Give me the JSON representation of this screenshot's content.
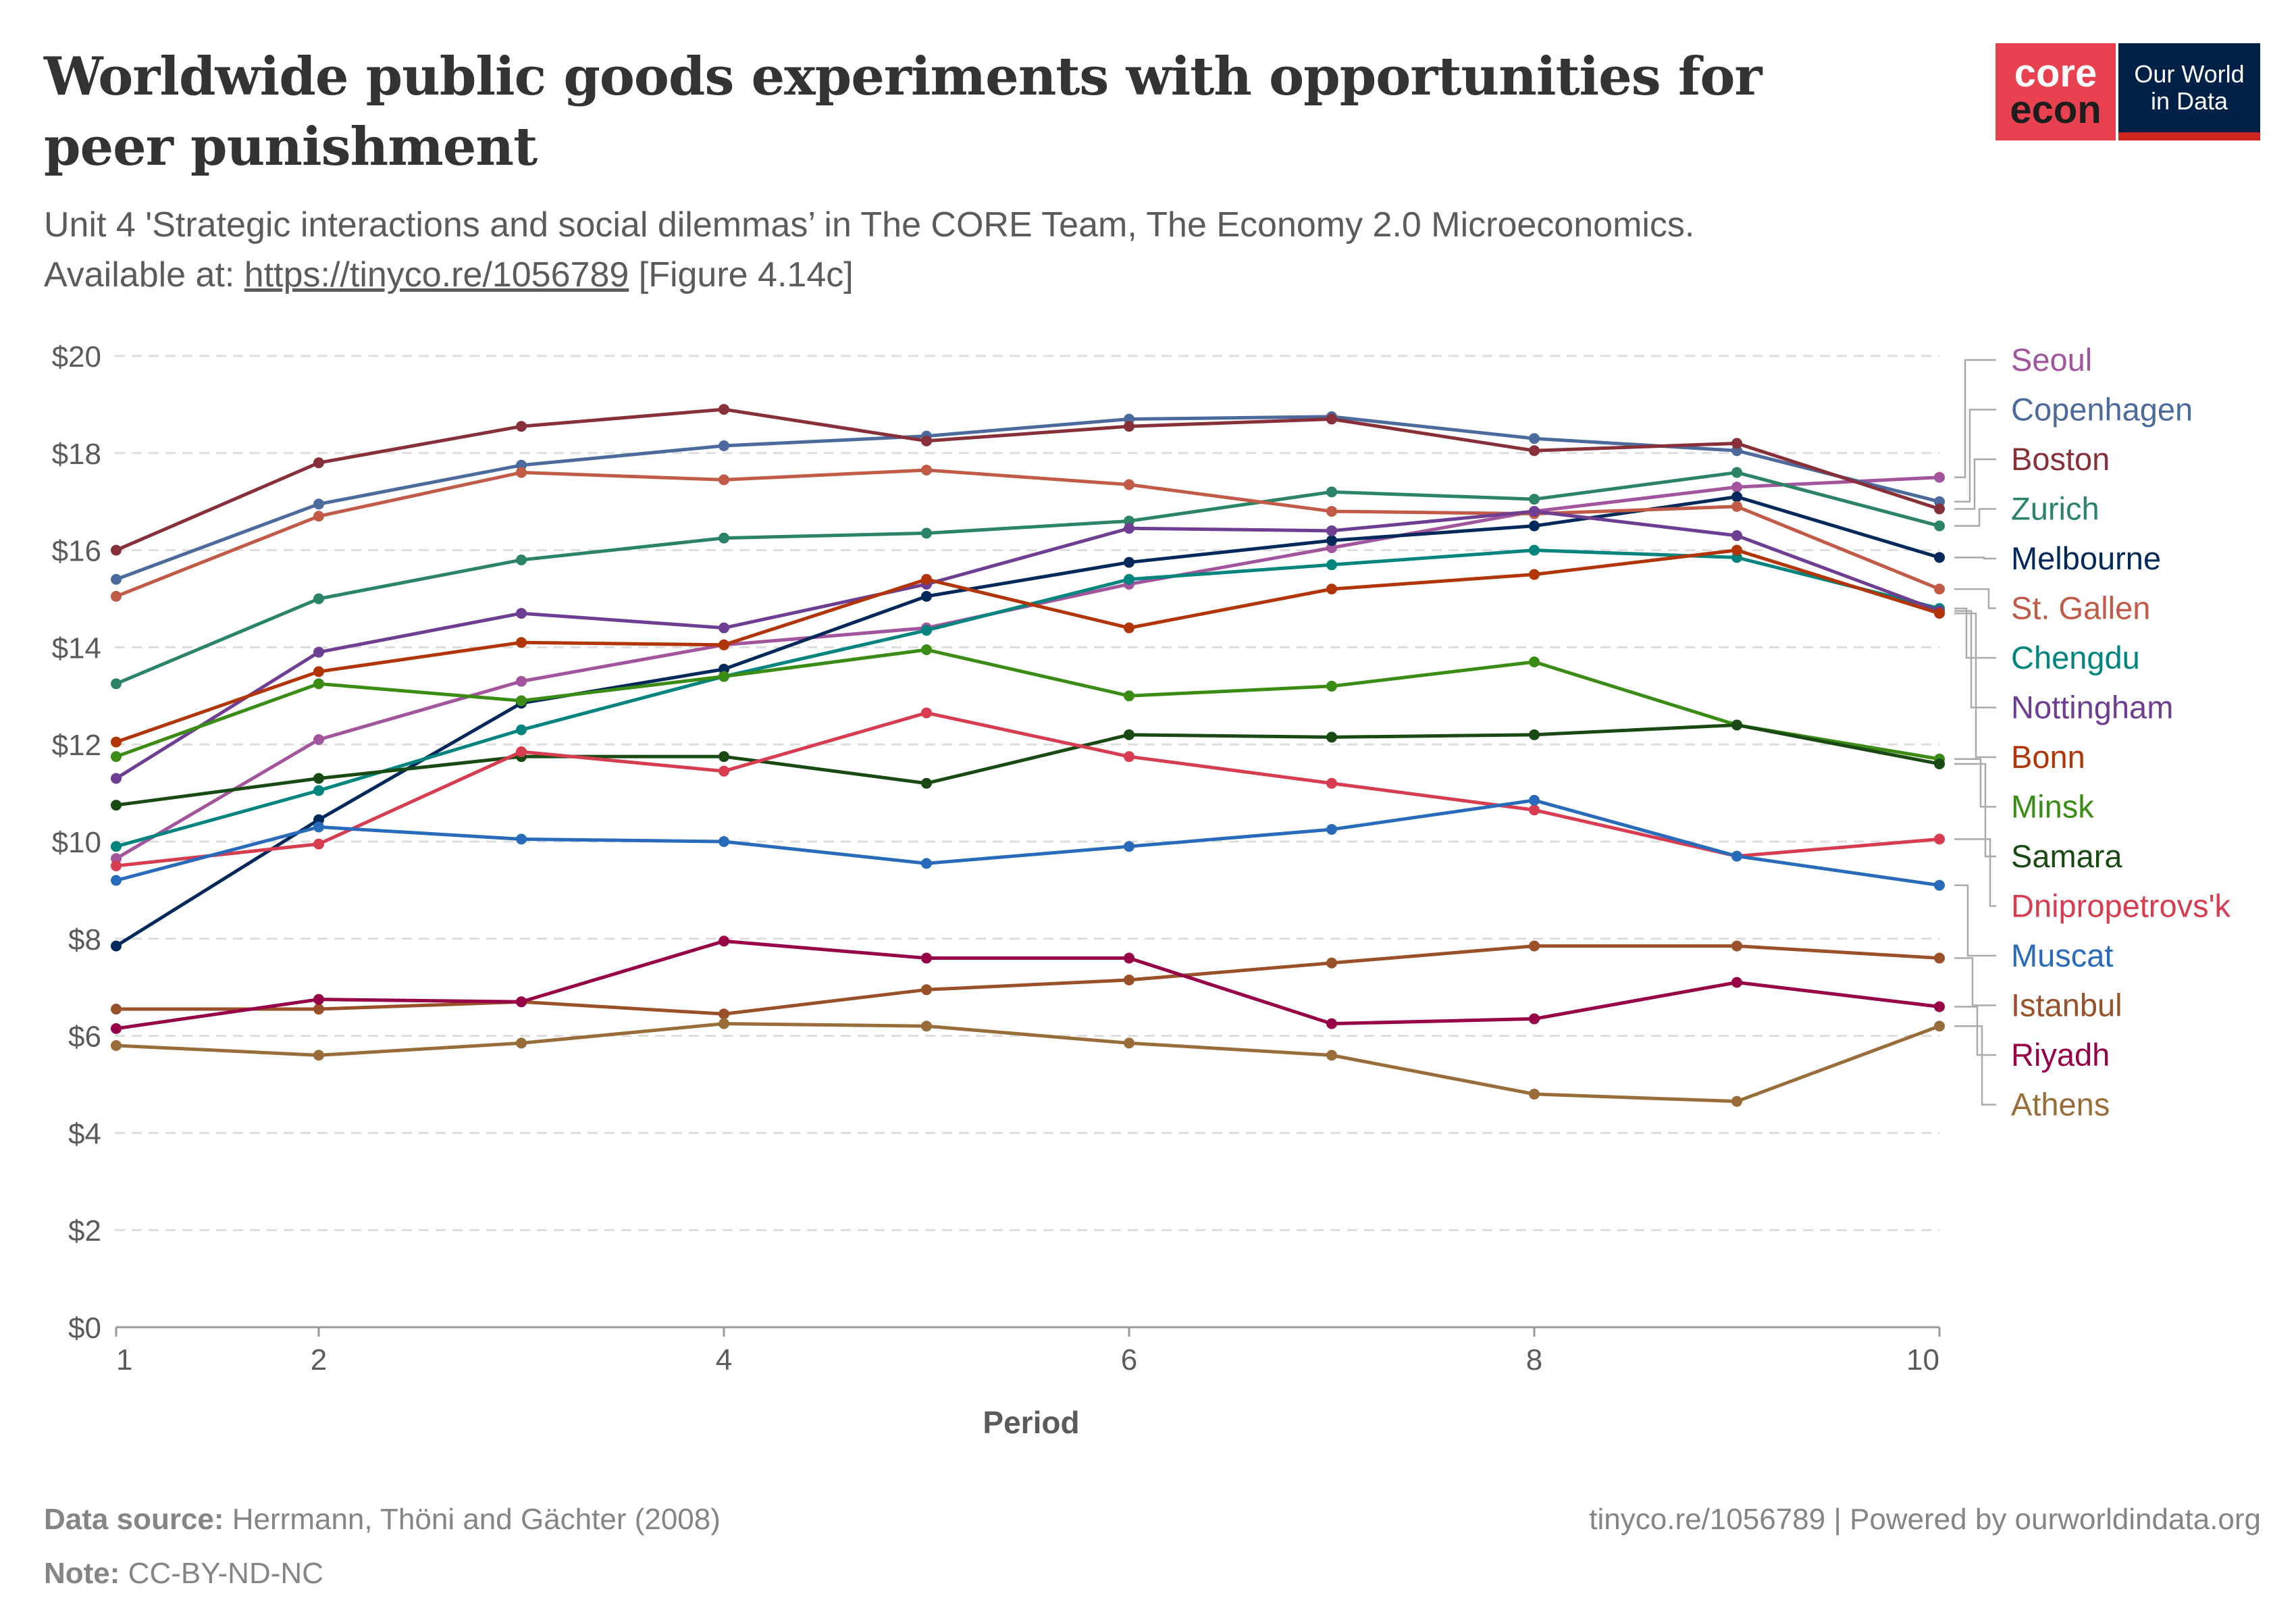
{
  "header": {
    "title": "Worldwide public goods experiments with opportunities for peer punishment",
    "subtitle_pre": "Unit 4 'Strategic interactions and social dilemmas’ in The CORE Team, The Economy 2.0 Microeconomics. Available at: ",
    "subtitle_link": "https://tinyco.re/1056789",
    "subtitle_post": " [Figure 4.14c]",
    "logo_core_top": "core",
    "logo_core_bottom": "econ",
    "logo_owid_top": "Our World",
    "logo_owid_bottom": "in Data"
  },
  "footer": {
    "source_label": "Data source:",
    "source_text": " Herrmann, Thöni and Gächter (2008)",
    "note_label": "Note:",
    "note_text": " CC-BY-ND-NC",
    "right_text": "tinyco.re/1056789 | Powered by ourworldindata.org"
  },
  "chart_data": {
    "type": "line",
    "title": "Worldwide public goods experiments with opportunities for peer punishment",
    "xlabel": "Period",
    "ylabel": "",
    "x": [
      1,
      2,
      3,
      4,
      5,
      6,
      7,
      8,
      9,
      10
    ],
    "xticks": [
      "1",
      "2",
      "4",
      "6",
      "8",
      "10"
    ],
    "xtick_values": [
      1,
      2,
      4,
      6,
      8,
      10
    ],
    "ylim": [
      0,
      20
    ],
    "yticks": [
      "$0",
      "$2",
      "$4",
      "$6",
      "$8",
      "$10",
      "$12",
      "$14",
      "$16",
      "$18",
      "$20"
    ],
    "ytick_values": [
      0,
      2,
      4,
      6,
      8,
      10,
      12,
      14,
      16,
      18,
      20
    ],
    "grid": true,
    "legend_placement": "right (line-end labels)",
    "series": [
      {
        "name": "Seoul",
        "color": "#a2559c",
        "values": [
          9.65,
          12.1,
          13.3,
          14.05,
          14.4,
          15.3,
          16.05,
          16.8,
          17.3,
          17.5
        ]
      },
      {
        "name": "Copenhagen",
        "color": "#4c6a9c",
        "values": [
          15.4,
          16.95,
          17.75,
          18.15,
          18.35,
          18.7,
          18.75,
          18.3,
          18.05,
          17.0
        ]
      },
      {
        "name": "Boston",
        "color": "#883039",
        "values": [
          16.0,
          17.8,
          18.55,
          18.9,
          18.25,
          18.55,
          18.7,
          18.05,
          18.2,
          16.85
        ]
      },
      {
        "name": "Zurich",
        "color": "#2b8465",
        "values": [
          13.25,
          15.0,
          15.8,
          16.25,
          16.35,
          16.6,
          17.2,
          17.05,
          17.6,
          16.5
        ]
      },
      {
        "name": "Melbourne",
        "color": "#00295b",
        "values": [
          7.85,
          10.45,
          12.85,
          13.55,
          15.05,
          15.75,
          16.2,
          16.5,
          17.1,
          15.85
        ]
      },
      {
        "name": "St. Gallen",
        "color": "#c15b48",
        "values": [
          15.05,
          16.7,
          17.6,
          17.45,
          17.65,
          17.35,
          16.8,
          16.75,
          16.9,
          15.2
        ]
      },
      {
        "name": "Chengdu",
        "color": "#00847e",
        "values": [
          9.9,
          11.05,
          12.3,
          13.4,
          14.35,
          15.4,
          15.7,
          16.0,
          15.85,
          14.8
        ]
      },
      {
        "name": "Nottingham",
        "color": "#6d3e91",
        "values": [
          11.3,
          13.9,
          14.7,
          14.4,
          15.3,
          16.45,
          16.4,
          16.8,
          16.3,
          14.75
        ]
      },
      {
        "name": "Bonn",
        "color": "#b13507",
        "values": [
          12.05,
          13.5,
          14.1,
          14.05,
          15.4,
          14.4,
          15.2,
          15.5,
          16.0,
          14.7
        ]
      },
      {
        "name": "Minsk",
        "color": "#38aaba00",
        "values": [
          11.75,
          13.25,
          12.9,
          13.4,
          13.95,
          13.0,
          13.2,
          13.7,
          12.4,
          11.7
        ]
      },
      {
        "name": "Samara",
        "color": "#1a4a14",
        "values": [
          10.75,
          11.3,
          11.75,
          11.75,
          11.2,
          12.2,
          12.15,
          12.2,
          12.4,
          11.6
        ]
      },
      {
        "name": "Dnipropetrovs'k",
        "color": "#d73c50",
        "values": [
          9.5,
          9.95,
          11.85,
          11.45,
          12.65,
          11.75,
          11.2,
          10.65,
          9.7,
          10.05
        ]
      },
      {
        "name": "Muscat",
        "color": "#286bbb",
        "values": [
          9.2,
          10.3,
          10.05,
          10.0,
          9.55,
          9.9,
          10.25,
          10.85,
          9.7,
          9.1
        ]
      },
      {
        "name": "Istanbul",
        "color": "#9a5129",
        "values": [
          6.55,
          6.55,
          6.7,
          6.45,
          6.95,
          7.15,
          7.5,
          7.85,
          7.85,
          7.6
        ]
      },
      {
        "name": "Riyadh",
        "color": "#970046",
        "values": [
          6.15,
          6.75,
          6.7,
          7.95,
          7.6,
          7.6,
          6.25,
          6.35,
          7.1,
          6.6
        ]
      },
      {
        "name": "Athens",
        "color": "#996d39",
        "values": [
          5.8,
          5.6,
          5.85,
          6.25,
          6.2,
          5.85,
          5.6,
          4.8,
          4.65,
          6.2
        ]
      }
    ]
  }
}
